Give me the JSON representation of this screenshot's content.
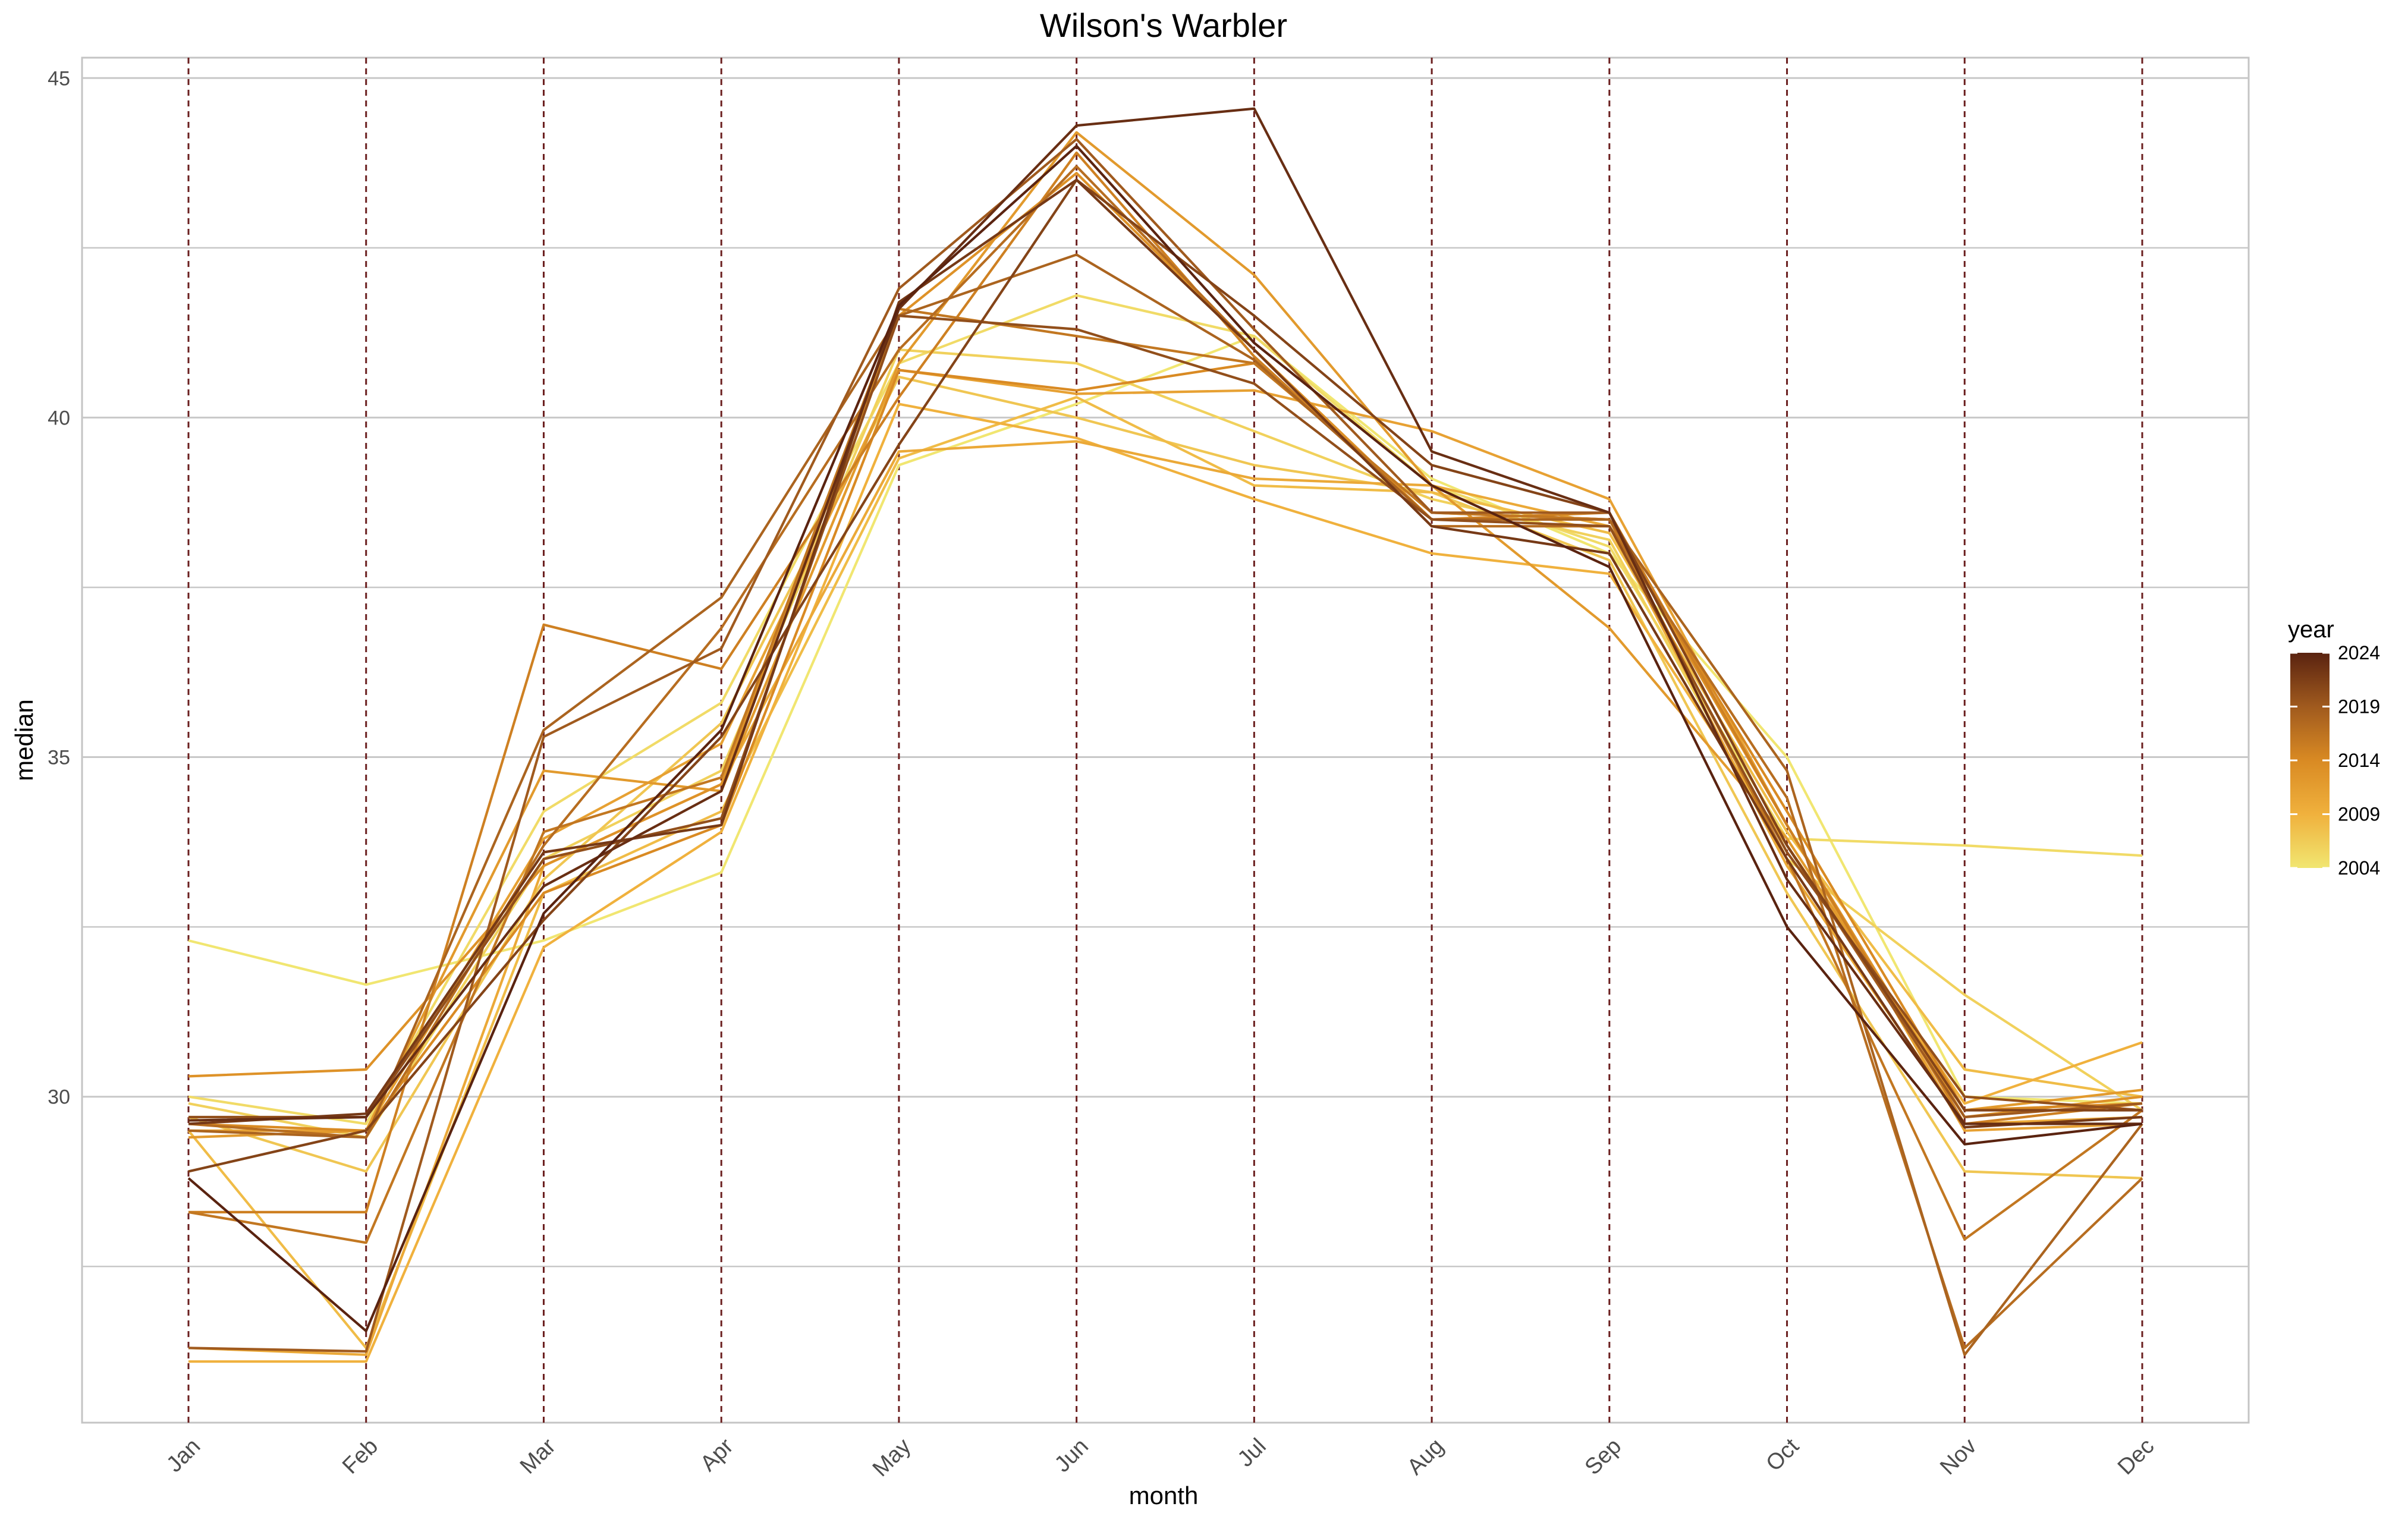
{
  "chart_data": {
    "type": "line",
    "title": "Wilson's Warbler",
    "xlabel": "month",
    "ylabel": "median",
    "categories": [
      "Jan",
      "Feb",
      "Mar",
      "Apr",
      "May",
      "Jun",
      "Jul",
      "Aug",
      "Sep",
      "Oct",
      "Nov",
      "Dec"
    ],
    "yticks": [
      30,
      35,
      40,
      45
    ],
    "ylim": [
      25.2,
      45.3
    ],
    "grid": true,
    "legend": {
      "title": "year",
      "position": "right",
      "ticks": [
        2024,
        2019,
        2014,
        2009,
        2004
      ],
      "range": [
        2004,
        2024
      ],
      "colors": [
        "#f1e671",
        "#f0b13d",
        "#d98a23",
        "#a05a1e",
        "#5a2310"
      ]
    },
    "series": [
      {
        "year": 2004,
        "values": [
          32.3,
          31.65,
          32.3,
          33.3,
          39.3,
          40.2,
          41.2,
          39.1,
          38.0,
          35.0,
          30.0,
          29.9
        ]
      },
      {
        "year": 2005,
        "values": [
          30.0,
          29.6,
          34.2,
          35.8,
          40.8,
          41.8,
          41.2,
          39.0,
          38.1,
          33.8,
          33.7,
          33.55
        ]
      },
      {
        "year": 2006,
        "values": [
          29.9,
          29.4,
          33.5,
          34.8,
          41.0,
          40.8,
          39.8,
          38.8,
          38.2,
          33.5,
          31.5,
          29.8
        ]
      },
      {
        "year": 2007,
        "values": [
          29.7,
          28.9,
          33.2,
          35.5,
          40.6,
          40.0,
          39.3,
          38.9,
          37.9,
          33.0,
          28.9,
          28.8
        ]
      },
      {
        "year": 2008,
        "values": [
          29.5,
          26.3,
          33.0,
          34.2,
          39.4,
          40.3,
          39.0,
          38.9,
          38.3,
          33.9,
          30.4,
          30.0
        ]
      },
      {
        "year": 2009,
        "values": [
          26.1,
          26.1,
          32.2,
          33.9,
          40.2,
          39.7,
          38.8,
          38.0,
          37.7,
          33.7,
          29.9,
          30.8
        ]
      },
      {
        "year": 2010,
        "values": [
          26.3,
          26.2,
          33.4,
          34.6,
          39.5,
          39.65,
          39.1,
          39.0,
          38.4,
          33.4,
          29.6,
          29.7
        ]
      },
      {
        "year": 2011,
        "values": [
          29.5,
          29.5,
          33.8,
          35.2,
          40.7,
          40.35,
          40.4,
          39.8,
          38.8,
          34.0,
          29.5,
          29.6
        ]
      },
      {
        "year": 2012,
        "values": [
          29.4,
          29.5,
          34.8,
          34.5,
          40.8,
          44.2,
          42.1,
          39.0,
          36.9,
          33.8,
          29.8,
          30.1
        ]
      },
      {
        "year": 2013,
        "values": [
          30.3,
          30.4,
          33.4,
          34.6,
          41.5,
          43.6,
          41.0,
          38.5,
          38.5,
          34.0,
          29.7,
          30.0
        ]
      },
      {
        "year": 2014,
        "values": [
          29.6,
          29.5,
          33.0,
          34.0,
          40.7,
          40.4,
          40.8,
          38.6,
          38.5,
          34.2,
          29.8,
          29.9
        ]
      },
      {
        "year": 2015,
        "values": [
          28.3,
          28.3,
          36.95,
          36.3,
          40.3,
          43.9,
          40.9,
          38.5,
          38.6,
          34.0,
          29.6,
          29.9
        ]
      },
      {
        "year": 2016,
        "values": [
          28.3,
          27.85,
          33.9,
          34.7,
          41.6,
          41.2,
          40.8,
          38.6,
          38.5,
          33.5,
          27.9,
          29.8
        ]
      },
      {
        "year": 2017,
        "values": [
          29.6,
          29.4,
          33.7,
          36.9,
          41.0,
          43.7,
          41.0,
          38.4,
          38.4,
          34.4,
          26.3,
          28.8
        ]
      },
      {
        "year": 2018,
        "values": [
          29.5,
          29.4,
          35.4,
          37.35,
          41.5,
          42.4,
          40.85,
          38.5,
          38.5,
          34.8,
          26.2,
          29.6
        ]
      },
      {
        "year": 2019,
        "values": [
          26.3,
          26.25,
          35.3,
          36.6,
          41.9,
          44.1,
          41.3,
          38.6,
          38.6,
          33.7,
          29.7,
          29.9
        ]
      },
      {
        "year": 2020,
        "values": [
          29.7,
          29.7,
          33.5,
          34.1,
          41.5,
          41.3,
          40.5,
          38.5,
          38.4,
          33.6,
          30.0,
          29.8
        ]
      },
      {
        "year": 2021,
        "values": [
          28.9,
          29.5,
          32.6,
          35.3,
          39.6,
          43.5,
          41.5,
          39.3,
          38.6,
          33.7,
          29.8,
          29.8
        ]
      },
      {
        "year": 2022,
        "values": [
          29.6,
          29.75,
          33.6,
          34.0,
          41.7,
          43.5,
          41.0,
          38.4,
          38.0,
          33.5,
          29.55,
          29.7
        ]
      },
      {
        "year": 2023,
        "values": [
          29.65,
          29.7,
          33.1,
          34.5,
          41.6,
          44.3,
          44.55,
          39.5,
          38.6,
          33.2,
          29.6,
          29.6
        ]
      },
      {
        "year": 2024,
        "values": [
          28.8,
          26.55,
          32.7,
          35.4,
          41.65,
          44.0,
          41.1,
          39.0,
          37.8,
          32.5,
          29.3,
          29.6
        ]
      }
    ]
  }
}
